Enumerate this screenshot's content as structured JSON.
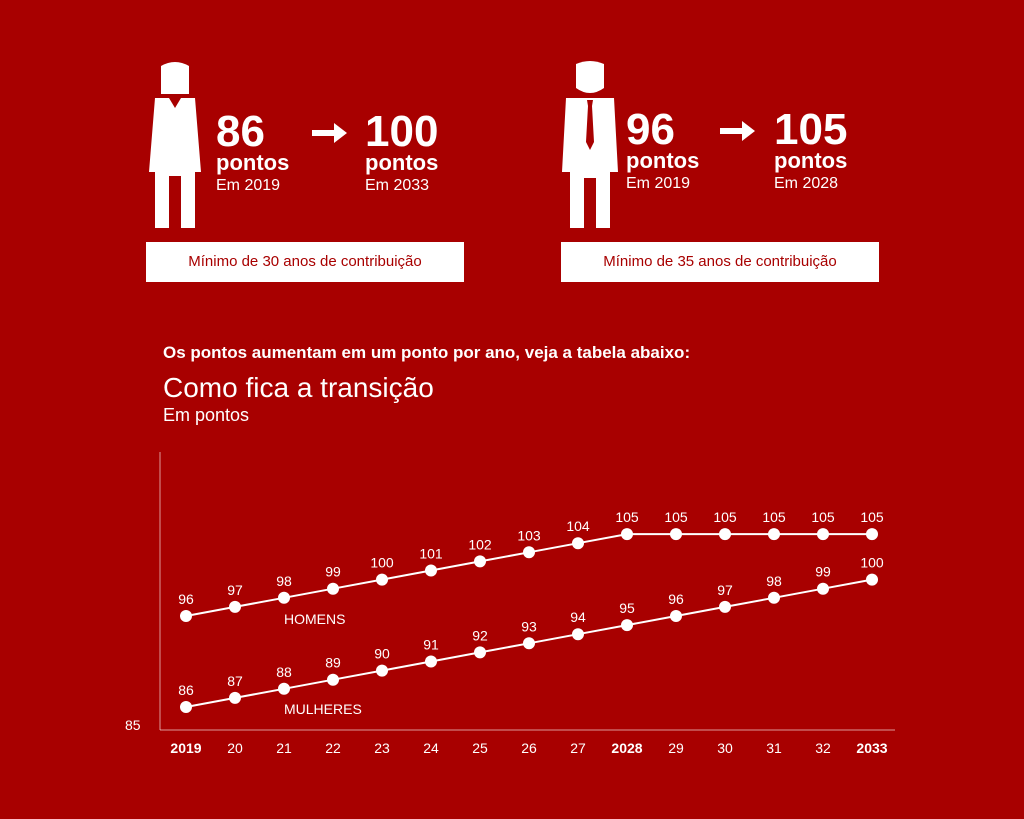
{
  "women": {
    "from_value": "86",
    "from_unit": "pontos",
    "from_year": "Em 2019",
    "to_value": "100",
    "to_unit": "pontos",
    "to_year": "Em 2033",
    "minimum": "Mínimo de 30 anos de contribuição",
    "icon": "woman-icon"
  },
  "men": {
    "from_value": "96",
    "from_unit": "pontos",
    "from_year": "Em 2019",
    "to_value": "105",
    "to_unit": "pontos",
    "to_year": "Em 2028",
    "minimum": "Mínimo de 35 anos de contribuição",
    "icon": "man-icon"
  },
  "arrow_icon": "right-arrow-icon",
  "intro": "Os pontos aumentam em um ponto por ano, veja a tabela abaixo:",
  "colors": {
    "background": "#a80000",
    "foreground": "#ffffff"
  },
  "chart_data": {
    "type": "line",
    "title": "Como fica a transição",
    "subtitle": "Em pontos",
    "categories": [
      "2019",
      "20",
      "21",
      "22",
      "23",
      "24",
      "25",
      "26",
      "27",
      "2028",
      "29",
      "30",
      "31",
      "32",
      "2033"
    ],
    "bold_categories": [
      "2019",
      "2028",
      "2033"
    ],
    "series": [
      {
        "name": "HOMENS",
        "values": [
          96,
          97,
          98,
          99,
          100,
          101,
          102,
          103,
          104,
          105,
          105,
          105,
          105,
          105,
          105
        ]
      },
      {
        "name": "MULHERES",
        "values": [
          86,
          87,
          88,
          89,
          90,
          91,
          92,
          93,
          94,
          95,
          96,
          97,
          98,
          99,
          100
        ]
      }
    ],
    "y_axis_label": "85",
    "ylim": [
      85,
      108
    ],
    "grid": false
  }
}
